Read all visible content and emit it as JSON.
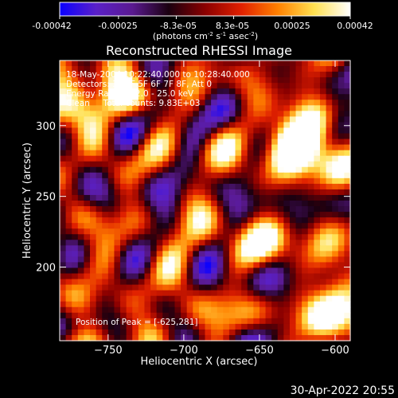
{
  "colorbar": {
    "ticks": [
      "-0.00042",
      "-0.00025",
      "-8.3e-05",
      "8.3e-05",
      "0.00025",
      "0.00042"
    ],
    "tick_values": [
      -0.00042,
      -0.00025,
      -8.3e-05,
      8.3e-05,
      0.00025,
      0.00042
    ],
    "range": [
      -0.00042,
      0.00042
    ],
    "units_prefix": "(photons cm",
    "units_sup1": "-2",
    "units_mid": " s",
    "units_sup2": "-1",
    "units_suffix": " asec",
    "units_sup3": "-2",
    "units_end": ")",
    "colors": [
      "#0a00ff",
      "#5a20c8",
      "#5a1a90",
      "#1a0010",
      "#8a0000",
      "#e02000",
      "#ff8000",
      "#ffe050",
      "#ffffff"
    ]
  },
  "chart_data": {
    "type": "heatmap",
    "title": "Reconstructed RHESSI Image",
    "xlabel": "Heliocentric X (arcsec)",
    "ylabel": "Heliocentric Y (arcsec)",
    "xlim": [
      -782,
      -590
    ],
    "ylim": [
      148,
      346
    ],
    "x_ticks": [
      -750,
      -700,
      -650,
      -600
    ],
    "y_ticks": [
      200,
      250,
      300
    ],
    "x_tick_labels": [
      "−750",
      "−700",
      "−650",
      "−600"
    ],
    "y_tick_labels": [
      "200",
      "250",
      "300"
    ],
    "annotations": [
      "18-May-2004 10:22:40.000 to 10:28:40.000",
      "Detectors: 3F 4F 5F 6F 7F 8F, Att 0",
      "Energy Range: 12.0 - 25.0 keV",
      "Clean     Total counts: 9.83E+03"
    ],
    "peak_label": "Position of Peak = [-625,281]",
    "peak_position": [
      -625,
      281
    ],
    "value_range": [
      -0.00042,
      0.00042
    ],
    "pixel_size_arcsec": 4
  },
  "footer": {
    "timestamp": "30-Apr-2022 20:55"
  }
}
